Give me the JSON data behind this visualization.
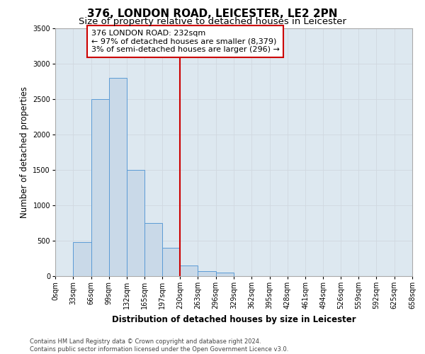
{
  "title": "376, LONDON ROAD, LEICESTER, LE2 2PN",
  "subtitle": "Size of property relative to detached houses in Leicester",
  "xlabel": "Distribution of detached houses by size in Leicester",
  "ylabel": "Number of detached properties",
  "bin_edges": [
    0,
    33,
    66,
    99,
    132,
    165,
    197,
    230,
    263,
    296,
    329,
    362,
    395,
    428,
    461,
    494,
    526,
    559,
    592,
    625,
    658
  ],
  "bar_heights": [
    0,
    480,
    2500,
    2800,
    1500,
    750,
    400,
    150,
    70,
    50,
    0,
    0,
    0,
    0,
    0,
    0,
    0,
    0,
    0,
    0
  ],
  "bar_color": "#c9d9e8",
  "bar_edge_color": "#5b9bd5",
  "property_line_x": 230,
  "property_line_color": "#cc0000",
  "annotation_text": "376 LONDON ROAD: 232sqm\n← 97% of detached houses are smaller (8,379)\n3% of semi-detached houses are larger (296) →",
  "annotation_box_color": "#cc0000",
  "annotation_bg_color": "#ffffff",
  "ylim": [
    0,
    3500
  ],
  "yticks": [
    0,
    500,
    1000,
    1500,
    2000,
    2500,
    3000,
    3500
  ],
  "tick_labels": [
    "0sqm",
    "33sqm",
    "66sqm",
    "99sqm",
    "132sqm",
    "165sqm",
    "197sqm",
    "230sqm",
    "263sqm",
    "296sqm",
    "329sqm",
    "362sqm",
    "395sqm",
    "428sqm",
    "461sqm",
    "494sqm",
    "526sqm",
    "559sqm",
    "592sqm",
    "625sqm",
    "658sqm"
  ],
  "footer_line1": "Contains HM Land Registry data © Crown copyright and database right 2024.",
  "footer_line2": "Contains public sector information licensed under the Open Government Licence v3.0.",
  "bg_color": "#ffffff",
  "grid_color": "#d0d8e0",
  "title_fontsize": 11,
  "subtitle_fontsize": 9.5,
  "axis_label_fontsize": 8.5,
  "tick_fontsize": 7,
  "footer_fontsize": 6,
  "annotation_fontsize": 8
}
